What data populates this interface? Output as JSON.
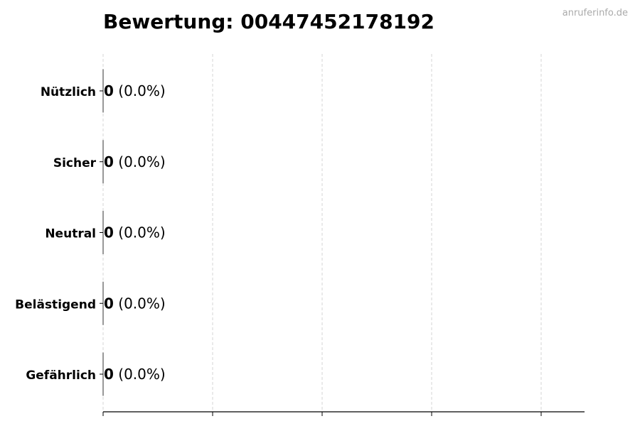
{
  "watermark": "anruferinfo.de",
  "chart_data": {
    "type": "bar",
    "orientation": "horizontal",
    "title": "Bewertung: 004474521781​92",
    "categories": [
      "Nützlich",
      "Sicher",
      "Neutral",
      "Belästigend",
      "Gefährlich"
    ],
    "values": [
      0,
      0,
      0,
      0,
      0
    ],
    "value_labels": [
      "0",
      "0",
      "0",
      "0",
      "0"
    ],
    "percent_labels": [
      "(0.0%)",
      "(0.0%)",
      "(0.0%)",
      "(0.0%)",
      "(0.0%)"
    ],
    "xlabel": "",
    "ylabel": "",
    "grid": "x-dashed",
    "x_tick_labels": false,
    "colors": {
      "bar_edge": "#333333",
      "grid": "#cccccc",
      "watermark": "#aaaaaa"
    }
  }
}
